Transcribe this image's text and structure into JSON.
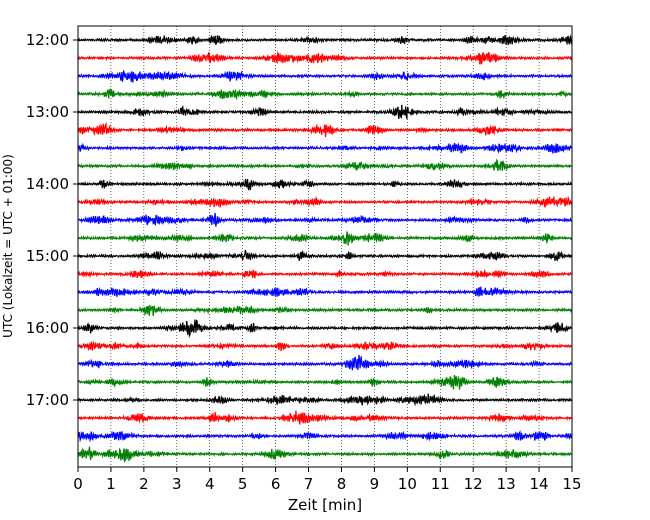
{
  "chart_data": {
    "type": "line",
    "title": "",
    "xlabel": "Zeit  [min]",
    "ylabel": "UTC (Lokalzeit = UTC + 01:00)",
    "xlim": [
      0,
      15
    ],
    "x_ticks": [
      "0",
      "1",
      "2",
      "3",
      "4",
      "5",
      "6",
      "7",
      "8",
      "9",
      "10",
      "11",
      "12",
      "13",
      "14",
      "15"
    ],
    "y_ticks": [
      "12:00",
      "13:00",
      "14:00",
      "15:00",
      "16:00",
      "17:00"
    ],
    "grid": "vertical dotted at each minute",
    "trace_interval_min": 15,
    "trace_colors": [
      "#000000",
      "#ff0000",
      "#0000ff",
      "#008000"
    ],
    "series": [
      {
        "name": "12:00"
      },
      {
        "name": "12:15"
      },
      {
        "name": "12:30"
      },
      {
        "name": "12:45"
      },
      {
        "name": "13:00"
      },
      {
        "name": "13:15"
      },
      {
        "name": "13:30"
      },
      {
        "name": "13:45"
      },
      {
        "name": "14:00"
      },
      {
        "name": "14:15"
      },
      {
        "name": "14:30"
      },
      {
        "name": "14:45"
      },
      {
        "name": "15:00"
      },
      {
        "name": "15:15"
      },
      {
        "name": "15:30"
      },
      {
        "name": "15:45"
      },
      {
        "name": "16:00"
      },
      {
        "name": "16:15"
      },
      {
        "name": "16:30"
      },
      {
        "name": "16:45"
      },
      {
        "name": "17:00"
      },
      {
        "name": "17:15"
      },
      {
        "name": "17:30"
      },
      {
        "name": "17:45"
      }
    ]
  }
}
